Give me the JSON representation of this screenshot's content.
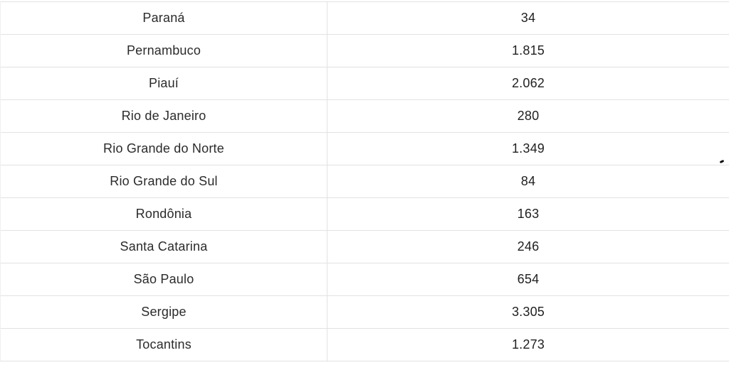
{
  "table": {
    "rows": [
      {
        "state": "Paraná",
        "value": "34"
      },
      {
        "state": "Pernambuco",
        "value": "1.815"
      },
      {
        "state": "Piauí",
        "value": "2.062"
      },
      {
        "state": "Rio de Janeiro",
        "value": "280"
      },
      {
        "state": "Rio Grande do Norte",
        "value": "1.349"
      },
      {
        "state": "Rio Grande do Sul",
        "value": "84"
      },
      {
        "state": "Rondônia",
        "value": "163"
      },
      {
        "state": "Santa Catarina",
        "value": "246"
      },
      {
        "state": "São Paulo",
        "value": "654"
      },
      {
        "state": "Sergipe",
        "value": "3.305"
      },
      {
        "state": "Tocantins",
        "value": "1.273"
      }
    ]
  },
  "chart_data": {
    "type": "table",
    "categories": [
      "Paraná",
      "Pernambuco",
      "Piauí",
      "Rio de Janeiro",
      "Rio Grande do Norte",
      "Rio Grande do Sul",
      "Rondônia",
      "Santa Catarina",
      "São Paulo",
      "Sergipe",
      "Tocantins"
    ],
    "values": [
      34,
      1815,
      2062,
      280,
      1349,
      84,
      163,
      246,
      654,
      3305,
      1273
    ],
    "value_labels": [
      "34",
      "1.815",
      "2.062",
      "280",
      "1.349",
      "84",
      "163",
      "246",
      "654",
      "3.305",
      "1.273"
    ],
    "number_format": "pt-BR thousands separator (.)",
    "legend_position": "none",
    "grid": "horizontal row borders + single column divider"
  },
  "colors": {
    "background": "#ffffff",
    "row_border": "#e2e2e2",
    "state_text": "#2b2b2b",
    "value_text": "#1f1f1f",
    "stray_mark": "#111111"
  }
}
